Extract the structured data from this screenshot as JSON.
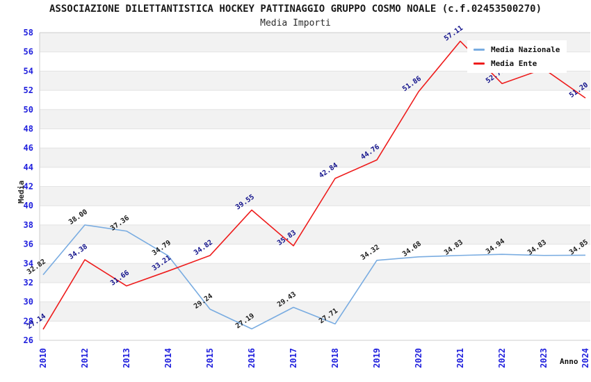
{
  "header": {
    "title": "ASSOCIAZIONE DILETTANTISTICA HOCKEY PATTINAGGIO GRUPPO COSMO NOALE (c.f.02453500270)",
    "subtitle": "Media Importi"
  },
  "axes": {
    "y_title": "Media",
    "x_title": "Anno",
    "y_ticks": [
      26,
      28,
      30,
      32,
      34,
      36,
      38,
      40,
      42,
      44,
      46,
      48,
      50,
      52,
      54,
      56,
      58
    ]
  },
  "legend": {
    "items": [
      {
        "label": "Media Nazionale",
        "color": "#79ace1"
      },
      {
        "label": "Media Ente",
        "color": "#ee1c1c"
      }
    ]
  },
  "chart_data": {
    "type": "line",
    "title": "Media Importi",
    "categories": [
      "2010",
      "2012",
      "2013",
      "2014",
      "2015",
      "2016",
      "2017",
      "2018",
      "2019",
      "2020",
      "2021",
      "2022",
      "2023",
      "2024"
    ],
    "series": [
      {
        "name": "Media Nazionale",
        "color": "#79ace1",
        "label_color": "#1a1a1a",
        "values": [
          32.82,
          38.0,
          37.36,
          34.79,
          29.24,
          27.19,
          29.43,
          27.71,
          34.32,
          34.68,
          34.83,
          34.94,
          34.83,
          34.85
        ],
        "labels": [
          "32.82",
          "38.00",
          "37.36",
          "34.79",
          "29.24",
          "27.19",
          "29.43",
          "27.71",
          "34.32",
          "34.68",
          "34.83",
          "34.94",
          "34.83",
          "34.85"
        ]
      },
      {
        "name": "Media Ente",
        "color": "#ee1c1c",
        "label_color": "#10108a",
        "values": [
          27.14,
          34.38,
          31.66,
          33.21,
          34.82,
          39.55,
          35.83,
          42.84,
          44.76,
          51.86,
          57.11,
          52.7,
          54.24,
          51.2
        ],
        "labels": [
          "27.14",
          "34.38",
          "31.66",
          "33.21",
          "34.82",
          "39.55",
          "35.83",
          "42.84",
          "44.76",
          "51.86",
          "57.11",
          "52.70",
          "54.24",
          "51.20"
        ]
      }
    ],
    "xlabel": "Anno",
    "ylabel": "Media",
    "ylim": [
      26,
      58
    ],
    "ytick_step": 2,
    "grid": "horizontal gridlines with alternating light-gray bands every 2 units",
    "legend_position": "top-right overlay inside plot",
    "notes": "Media Ente labels for 2022 and 2023 are partially/fully hidden behind the legend box in the original; their values are estimated from line position"
  },
  "colors": {
    "background": "#ffffff",
    "tick_label": "#1f1fdd",
    "band_gray": "#f2f2f2",
    "gridline": "#e3e3e3",
    "plot_border": "#cccccc",
    "nazionale_line": "#79ace1",
    "ente_line": "#ee1c1c",
    "nazionale_label": "#1a1a1a",
    "ente_label": "#10108a"
  }
}
